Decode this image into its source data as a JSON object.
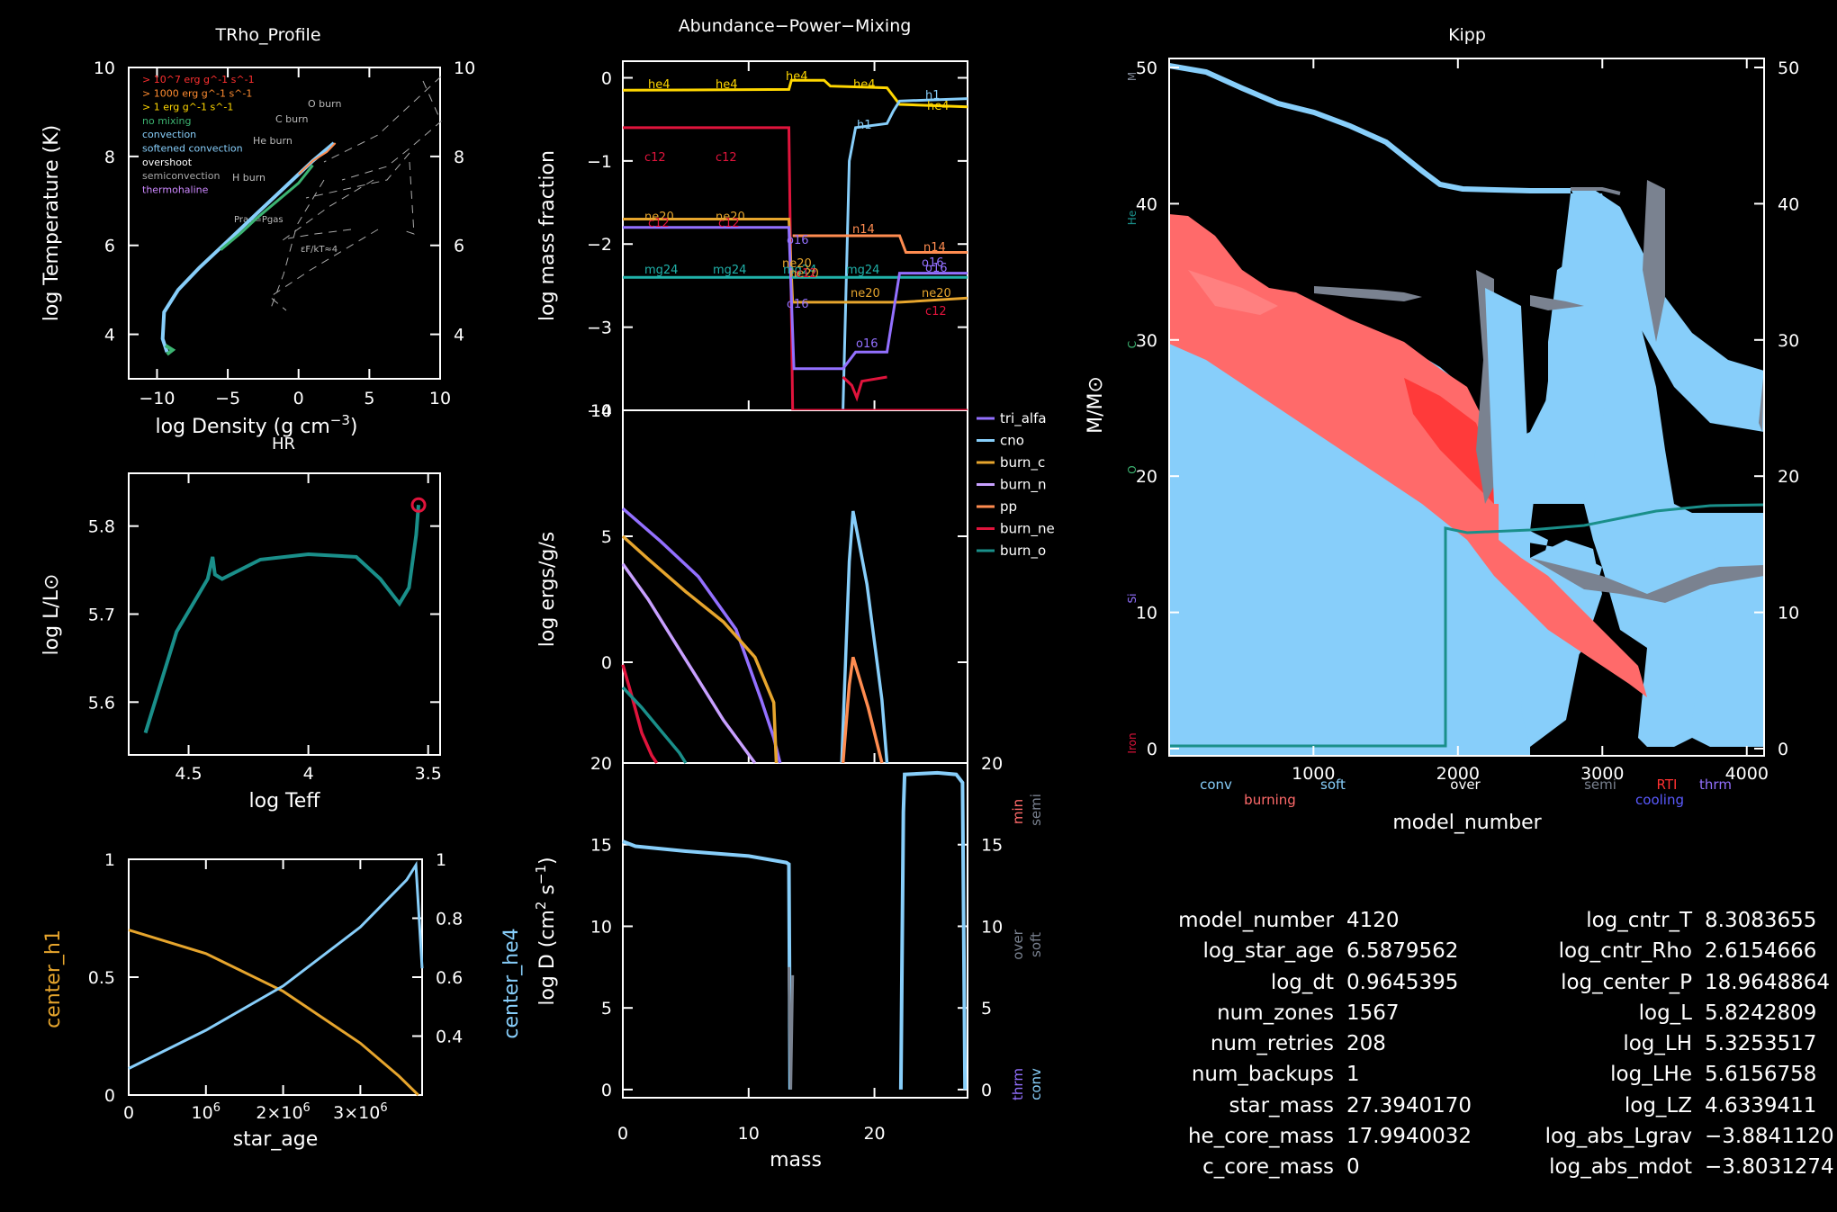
{
  "colors": {
    "axis": "#ffffff",
    "h1": "#87cefa",
    "he4": "#ffd700",
    "c12": "#e0143c",
    "n14": "#ff8c50",
    "ne20": "#e6a52d",
    "mg24": "#20b2aa",
    "o16": "#9370ff",
    "teal": "#1a8f8a",
    "orange": "#e6a52d",
    "blue": "#87cefa",
    "red": "#ff6a6a",
    "gray": "#7a8290"
  },
  "trho": {
    "title": "TRho_Profile",
    "xlabel": "log Density (g cm^-3)",
    "ylabel": "log Temperature (K)",
    "xticks": [
      "−10",
      "−5",
      "0",
      "5",
      "10"
    ],
    "yticks": [
      "4",
      "6",
      "8",
      "10"
    ],
    "yticks_right": [
      "4",
      "6",
      "8",
      "10"
    ],
    "legend": [
      "> 10^7 erg g^-1 s^-1",
      "> 1000 erg g^-1 s^-1",
      "> 1 erg g^-1 s^-1",
      "no mixing",
      "convection",
      "softened convection",
      "overshoot",
      "semiconvection",
      "thermohaline"
    ],
    "legend_colors": [
      "#ff3030",
      "#ff8c30",
      "#ffd700",
      "#3cb371",
      "#87cefa",
      "#87cefa",
      "#ffffff",
      "#aaaaaa",
      "#cc88ff"
    ],
    "annotations": [
      "O burn",
      "C burn",
      "He burn",
      "H burn",
      "Prad=Pgas",
      "εF/kT≈4"
    ]
  },
  "hr": {
    "title": "HR",
    "xlabel": "log Teff",
    "ylabel": "log L/L⊙",
    "xticks": [
      "4.5",
      "4",
      "3.5"
    ],
    "yticks": [
      "5.6",
      "5.7",
      "5.8"
    ]
  },
  "center": {
    "xlabel": "star_age",
    "ylabel_left": "center_h1",
    "ylabel_right": "center_he4",
    "xticks": [
      "0",
      "10^6",
      "2×10^6",
      "3×10^6"
    ],
    "yticks_left": [
      "0",
      "0.5",
      "1"
    ],
    "yticks_right": [
      "0.4",
      "0.6",
      "0.8",
      "1"
    ]
  },
  "abund": {
    "title": "Abundance−Power−Mixing",
    "ylabel": "log mass fraction",
    "yticks": [
      "0",
      "−1",
      "−2",
      "−3",
      "−4"
    ],
    "labels": [
      "he4",
      "he4",
      "he4",
      "he4",
      "h1",
      "he4",
      "h1",
      "c12",
      "c12",
      "ne20",
      "ne20",
      "c12",
      "c12",
      "n14",
      "n14",
      "mg24",
      "mg24",
      "mg24",
      "mg24",
      "ne20",
      "ne20",
      "ne20",
      "ne20",
      "o16",
      "o16",
      "c12",
      "o16",
      "c12",
      "o16",
      "o16"
    ]
  },
  "power": {
    "ylabel": "log ergs/g/s",
    "yticks": [
      "0",
      "5",
      "10"
    ],
    "legend": [
      "tri_alfa",
      "cno",
      "burn_c",
      "burn_n",
      "pp",
      "burn_ne",
      "burn_o"
    ]
  },
  "mixing": {
    "ylabel": "log D (cm^2 s^-1)",
    "xlabel": "mass",
    "xticks": [
      "0",
      "10",
      "20"
    ],
    "yticks": [
      "0",
      "5",
      "10",
      "15",
      "20"
    ],
    "yticks_right": [
      "0",
      "5",
      "10",
      "15",
      "20"
    ],
    "side_labels": [
      "min",
      "semi",
      "over",
      "soft",
      "thrm",
      "conv"
    ]
  },
  "kipp": {
    "title": "Kipp",
    "xlabel": "model_number",
    "ylabel": "M/M⊙",
    "xticks": [
      "1000",
      "2000",
      "3000",
      "4000"
    ],
    "yticks": [
      "0",
      "10",
      "20",
      "30",
      "40",
      "50"
    ],
    "yticks_right": [
      "0",
      "10",
      "20",
      "30",
      "40",
      "50"
    ],
    "bottom_labels": [
      "conv",
      "burning",
      "soft",
      "over",
      "semi",
      "RTI",
      "cooling",
      "thrm"
    ],
    "side_labels": [
      "M",
      "He",
      "C",
      "O",
      "Si",
      "Iron"
    ]
  },
  "stats": {
    "left": [
      [
        "model_number",
        "4120"
      ],
      [
        "log_star_age",
        "6.5879562"
      ],
      [
        "log_dt",
        "0.9645395"
      ],
      [
        "num_zones",
        "1567"
      ],
      [
        "num_retries",
        "208"
      ],
      [
        "num_backups",
        "1"
      ],
      [
        "star_mass",
        "27.3940170"
      ],
      [
        "he_core_mass",
        "17.9940032"
      ],
      [
        "c_core_mass",
        "0"
      ]
    ],
    "right": [
      [
        "log_cntr_T",
        "8.3083655"
      ],
      [
        "log_cntr_Rho",
        "2.6154666"
      ],
      [
        "log_center_P",
        "18.9648864"
      ],
      [
        "log_L",
        "5.8242809"
      ],
      [
        "log_LH",
        "5.3253517"
      ],
      [
        "log_LHe",
        "5.6156758"
      ],
      [
        "log_LZ",
        "4.6339411"
      ],
      [
        "log_abs_Lgrav",
        "−3.8841120"
      ],
      [
        "log_abs_mdot",
        "−3.8031274"
      ]
    ]
  },
  "chart_data": [
    {
      "type": "line",
      "title": "TRho_Profile",
      "xlabel": "log Density (g cm^-3)",
      "ylabel": "log Temperature (K)",
      "xlim": [
        -12,
        10
      ],
      "ylim": [
        3,
        10
      ],
      "series": [
        {
          "x": [
            -9.3,
            -9.6,
            -9.5,
            -8.5,
            -7,
            -5,
            -3,
            -1,
            1,
            2.5
          ],
          "y": [
            3.6,
            3.9,
            4.5,
            5.0,
            5.5,
            6.1,
            6.7,
            7.3,
            7.9,
            8.3
          ]
        }
      ]
    },
    {
      "type": "line",
      "title": "HR",
      "xlabel": "log Teff",
      "ylabel": "log L/L⊙",
      "xlim": [
        4.75,
        3.45
      ],
      "ylim": [
        5.54,
        5.86
      ],
      "series": [
        {
          "x": [
            4.68,
            4.55,
            4.42,
            4.4,
            4.39,
            4.36,
            4.2,
            4.0,
            3.8,
            3.7,
            3.62,
            3.58,
            3.55,
            3.54
          ],
          "y": [
            5.565,
            5.68,
            5.74,
            5.765,
            5.745,
            5.74,
            5.762,
            5.768,
            5.765,
            5.74,
            5.712,
            5.73,
            5.79,
            5.824
          ]
        }
      ]
    },
    {
      "type": "line",
      "title": "",
      "xlabel": "star_age",
      "xlim": [
        0,
        3800000.0
      ],
      "series": [
        {
          "name": "center_h1",
          "x": [
            0,
            1000000.0,
            2000000.0,
            3000000.0,
            3500000.0,
            3750000.0
          ],
          "y": [
            0.7,
            0.6,
            0.44,
            0.22,
            0.08,
            0
          ]
        },
        {
          "name": "center_he4",
          "x": [
            0,
            1000000.0,
            2000000.0,
            3000000.0,
            3600000.0,
            3720000.0,
            3800000.0
          ],
          "y": [
            0.29,
            0.42,
            0.57,
            0.77,
            0.93,
            0.98,
            0.63
          ]
        }
      ]
    },
    {
      "type": "line",
      "title": "Abundance−Power−Mixing",
      "xlabel": "mass",
      "ylabel": "log mass fraction",
      "xlim": [
        0,
        27.4
      ],
      "ylim": [
        -4,
        0.2
      ],
      "series": [
        {
          "name": "he4",
          "x": [
            0,
            13.2,
            13.4,
            16,
            16.5,
            21,
            22,
            27.4
          ],
          "y": [
            -0.15,
            -0.14,
            -0.03,
            -0.03,
            -0.1,
            -0.12,
            -0.32,
            -0.35
          ]
        },
        {
          "name": "h1",
          "x": [
            17.5,
            18,
            18.5,
            21,
            21.5,
            22,
            27.4
          ],
          "y": [
            -4,
            -1.0,
            -0.6,
            -0.55,
            -0.4,
            -0.28,
            -0.25
          ]
        },
        {
          "name": "c12",
          "x": [
            0,
            13.2,
            13.5,
            27.4
          ],
          "y": [
            -0.6,
            -0.6,
            -4,
            -4
          ]
        },
        {
          "name": "ne20",
          "x": [
            0,
            13.2,
            13.5,
            22,
            27.4
          ],
          "y": [
            -1.7,
            -1.7,
            -2.7,
            -2.7,
            -2.65
          ]
        },
        {
          "name": "n14",
          "x": [
            13.5,
            22,
            22.5,
            27.4
          ],
          "y": [
            -1.9,
            -1.9,
            -2.1,
            -2.1
          ]
        },
        {
          "name": "mg24",
          "x": [
            0,
            27.4
          ],
          "y": [
            -2.4,
            -2.4
          ]
        },
        {
          "name": "o16",
          "x": [
            0,
            13.2,
            13.6,
            17.5,
            18.5,
            21,
            22,
            27.4
          ],
          "y": [
            -1.8,
            -1.8,
            -3.5,
            -3.5,
            -3.3,
            -3.3,
            -2.35,
            -2.35
          ]
        }
      ]
    },
    {
      "type": "line",
      "title": "",
      "ylabel": "log ergs/g/s",
      "xlim": [
        0,
        27.4
      ],
      "ylim": [
        -4,
        10
      ],
      "series": [
        {
          "name": "tri_alfa",
          "x": [
            0,
            3,
            6,
            9,
            11,
            12,
            12.5
          ],
          "y": [
            6.1,
            4.8,
            3.4,
            1.3,
            -1.5,
            -3,
            -4
          ]
        },
        {
          "name": "cno",
          "x": [
            17.4,
            18,
            18.3,
            19.4,
            20.6,
            21
          ],
          "y": [
            -4,
            4,
            6,
            3.1,
            -1.5,
            -4
          ]
        },
        {
          "name": "burn_c",
          "x": [
            0,
            2,
            5,
            8,
            10.5,
            12,
            12.2
          ],
          "y": [
            5.0,
            4.1,
            2.8,
            1.6,
            0.2,
            -1.6,
            -4
          ]
        },
        {
          "name": "burn_n",
          "x": [
            0,
            2,
            4,
            6,
            8,
            10.5
          ],
          "y": [
            3.9,
            2.5,
            0.9,
            -0.7,
            -2.3,
            -4
          ]
        },
        {
          "name": "pp",
          "x": [
            17.5,
            18,
            18.3,
            19.5,
            20.6
          ],
          "y": [
            -4,
            -0.9,
            0.2,
            -1.8,
            -4
          ]
        },
        {
          "name": "burn_ne",
          "x": [
            0,
            0.8,
            1.5,
            2.3,
            2.7
          ],
          "y": [
            -0.1,
            -1.5,
            -2.8,
            -3.7,
            -4
          ]
        },
        {
          "name": "burn_o",
          "x": [
            0,
            1.5,
            3,
            4.5,
            5
          ],
          "y": [
            -1.0,
            -1.8,
            -2.7,
            -3.6,
            -4
          ]
        }
      ]
    },
    {
      "type": "line",
      "title": "",
      "xlabel": "mass",
      "ylabel": "log D (cm^2 s^-1)",
      "xlim": [
        0,
        27.4
      ],
      "ylim": [
        -0.5,
        20
      ],
      "series": [
        {
          "name": "conv",
          "x": [
            0,
            1,
            5,
            10,
            13,
            13.2,
            13.3
          ],
          "y": [
            15.2,
            14.9,
            14.6,
            14.3,
            13.9,
            13.8,
            0
          ]
        },
        {
          "name": "conv2",
          "x": [
            22.1,
            22.3,
            22.4,
            25,
            26.5,
            27,
            27.2
          ],
          "y": [
            0,
            17,
            19.3,
            19.4,
            19.3,
            18.8,
            0
          ]
        }
      ]
    },
    {
      "type": "area",
      "title": "Kipp",
      "xlabel": "model_number",
      "ylabel": "M/M⊙",
      "xlim": [
        1,
        4120
      ],
      "ylim": [
        0,
        50
      ],
      "series": [
        {
          "name": "star_mass",
          "x": [
            1,
            500,
            1000,
            1500,
            1800,
            2000,
            3000,
            4120
          ],
          "y": [
            50,
            47,
            45.5,
            43,
            41.4,
            41,
            41,
            27.4
          ]
        },
        {
          "name": "he_core_mass",
          "x": [
            1900,
            3000,
            4120
          ],
          "y": [
            16.5,
            16.8,
            18.0
          ]
        }
      ]
    }
  ]
}
